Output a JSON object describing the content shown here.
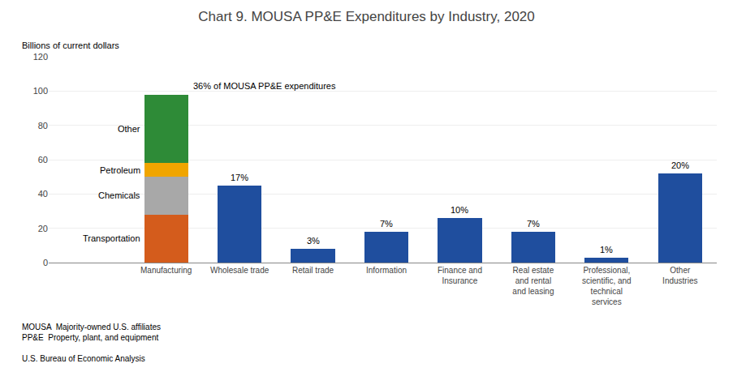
{
  "chart_data": {
    "type": "bar",
    "stacked": true,
    "title": "Chart 9. MOUSA PP&E Expenditures by Industry, 2020",
    "ylabel": "Billions of current dollars",
    "categories": [
      "Manufacturing",
      "Wholesale trade",
      "Retail trade",
      "Information",
      "Finance and\nInsurance",
      "Real estate\nand rental\nand leasing",
      "Professional,\nscientific, and\ntechnical\nservices",
      "Other\nIndustries"
    ],
    "series": [
      {
        "name": "Transportation",
        "color": "#D45C1C",
        "values": [
          28,
          null,
          null,
          null,
          null,
          null,
          null,
          null
        ]
      },
      {
        "name": "Chemicals",
        "color": "#A8A8A8",
        "values": [
          22,
          null,
          null,
          null,
          null,
          null,
          null,
          null
        ]
      },
      {
        "name": "Petroleum",
        "color": "#F0A500",
        "values": [
          8,
          null,
          null,
          null,
          null,
          null,
          null,
          null
        ]
      },
      {
        "name": "Other",
        "color": "#2E8B37",
        "values": [
          40,
          null,
          null,
          null,
          null,
          null,
          null,
          null
        ]
      },
      {
        "color": "#1F4E9E",
        "values": [
          null,
          45,
          8,
          18,
          26,
          18,
          3,
          52
        ],
        "share_labels": [
          null,
          "17%",
          "3%",
          "7%",
          "10%",
          "7%",
          "1%",
          "20%"
        ]
      }
    ],
    "annotation": "36% of MOUSA PP&E expenditures",
    "footnotes": [
      "MOUSA  Majority-owned U.S. affiliates",
      "PP&E  Property, plant, and equipment"
    ],
    "source": "U.S. Bureau of Economic Analysis",
    "ylim": [
      0,
      120
    ],
    "yticks": [
      0,
      20,
      40,
      60,
      80,
      100,
      120
    ],
    "grid": true
  }
}
